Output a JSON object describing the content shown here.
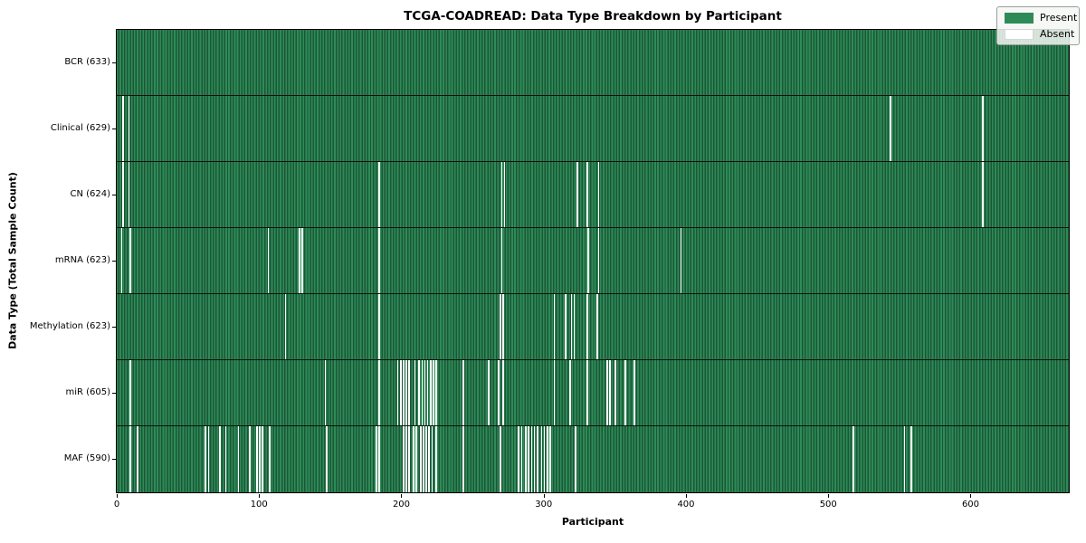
{
  "title": "TCGA-COADREAD: Data Type Breakdown by Participant",
  "xlabel": "Participant",
  "ylabel": "Data Type (Total Sample Count)",
  "legend": {
    "present_label": "Present",
    "absent_label": "Absent",
    "position": "upper right"
  },
  "colors": {
    "present": "#2e8b57",
    "present_edge": "#1b5737",
    "absent": "#ffffff",
    "background": "#ffffff"
  },
  "x_axis": {
    "ticks": [
      0,
      100,
      200,
      300,
      400,
      500,
      600
    ],
    "max": 669
  },
  "chart_data": {
    "type": "heatmap",
    "title": "TCGA-COADREAD: Data Type Breakdown by Participant",
    "xlabel": "Participant",
    "ylabel": "Data Type (Total Sample Count)",
    "n_participants": 633,
    "x_range": [
      0,
      669
    ],
    "legend_entries": [
      "Present",
      "Absent"
    ],
    "rows": [
      {
        "label": "BCR (633)",
        "data_type": "BCR",
        "total_samples": 633,
        "absent_participants": []
      },
      {
        "label": "Clinical (629)",
        "data_type": "Clinical",
        "total_samples": 629,
        "absent_participants": [
          4,
          8,
          543,
          608
        ]
      },
      {
        "label": "CN (624)",
        "data_type": "CN",
        "total_samples": 624,
        "absent_participants": [
          4,
          8,
          184,
          270,
          272,
          323,
          330,
          338,
          608
        ]
      },
      {
        "label": "mRNA (623)",
        "data_type": "mRNA",
        "total_samples": 623,
        "absent_participants": [
          3,
          9,
          106,
          128,
          130,
          184,
          270,
          331,
          338,
          396
        ]
      },
      {
        "label": "Methylation (623)",
        "data_type": "Methylation",
        "total_samples": 623,
        "absent_participants": [
          118,
          184,
          269,
          271,
          307,
          315,
          319,
          321,
          330,
          337
        ]
      },
      {
        "label": "miR (605)",
        "data_type": "miR",
        "total_samples": 605,
        "absent_participants": [
          9,
          146,
          184,
          197,
          199,
          201,
          203,
          205,
          209,
          212,
          214,
          216,
          218,
          220,
          222,
          224,
          243,
          261,
          268,
          271,
          307,
          318,
          330,
          344,
          346,
          350,
          357,
          363
        ]
      },
      {
        "label": "MAF (590)",
        "data_type": "MAF",
        "total_samples": 590,
        "absent_participants": [
          9,
          14,
          62,
          64,
          72,
          76,
          85,
          93,
          98,
          100,
          102,
          107,
          147,
          182,
          184,
          201,
          203,
          205,
          208,
          210,
          213,
          215,
          217,
          219,
          221,
          224,
          243,
          269,
          282,
          284,
          287,
          289,
          291,
          293,
          295,
          298,
          300,
          302,
          304,
          322,
          517,
          553,
          558
        ]
      }
    ]
  }
}
